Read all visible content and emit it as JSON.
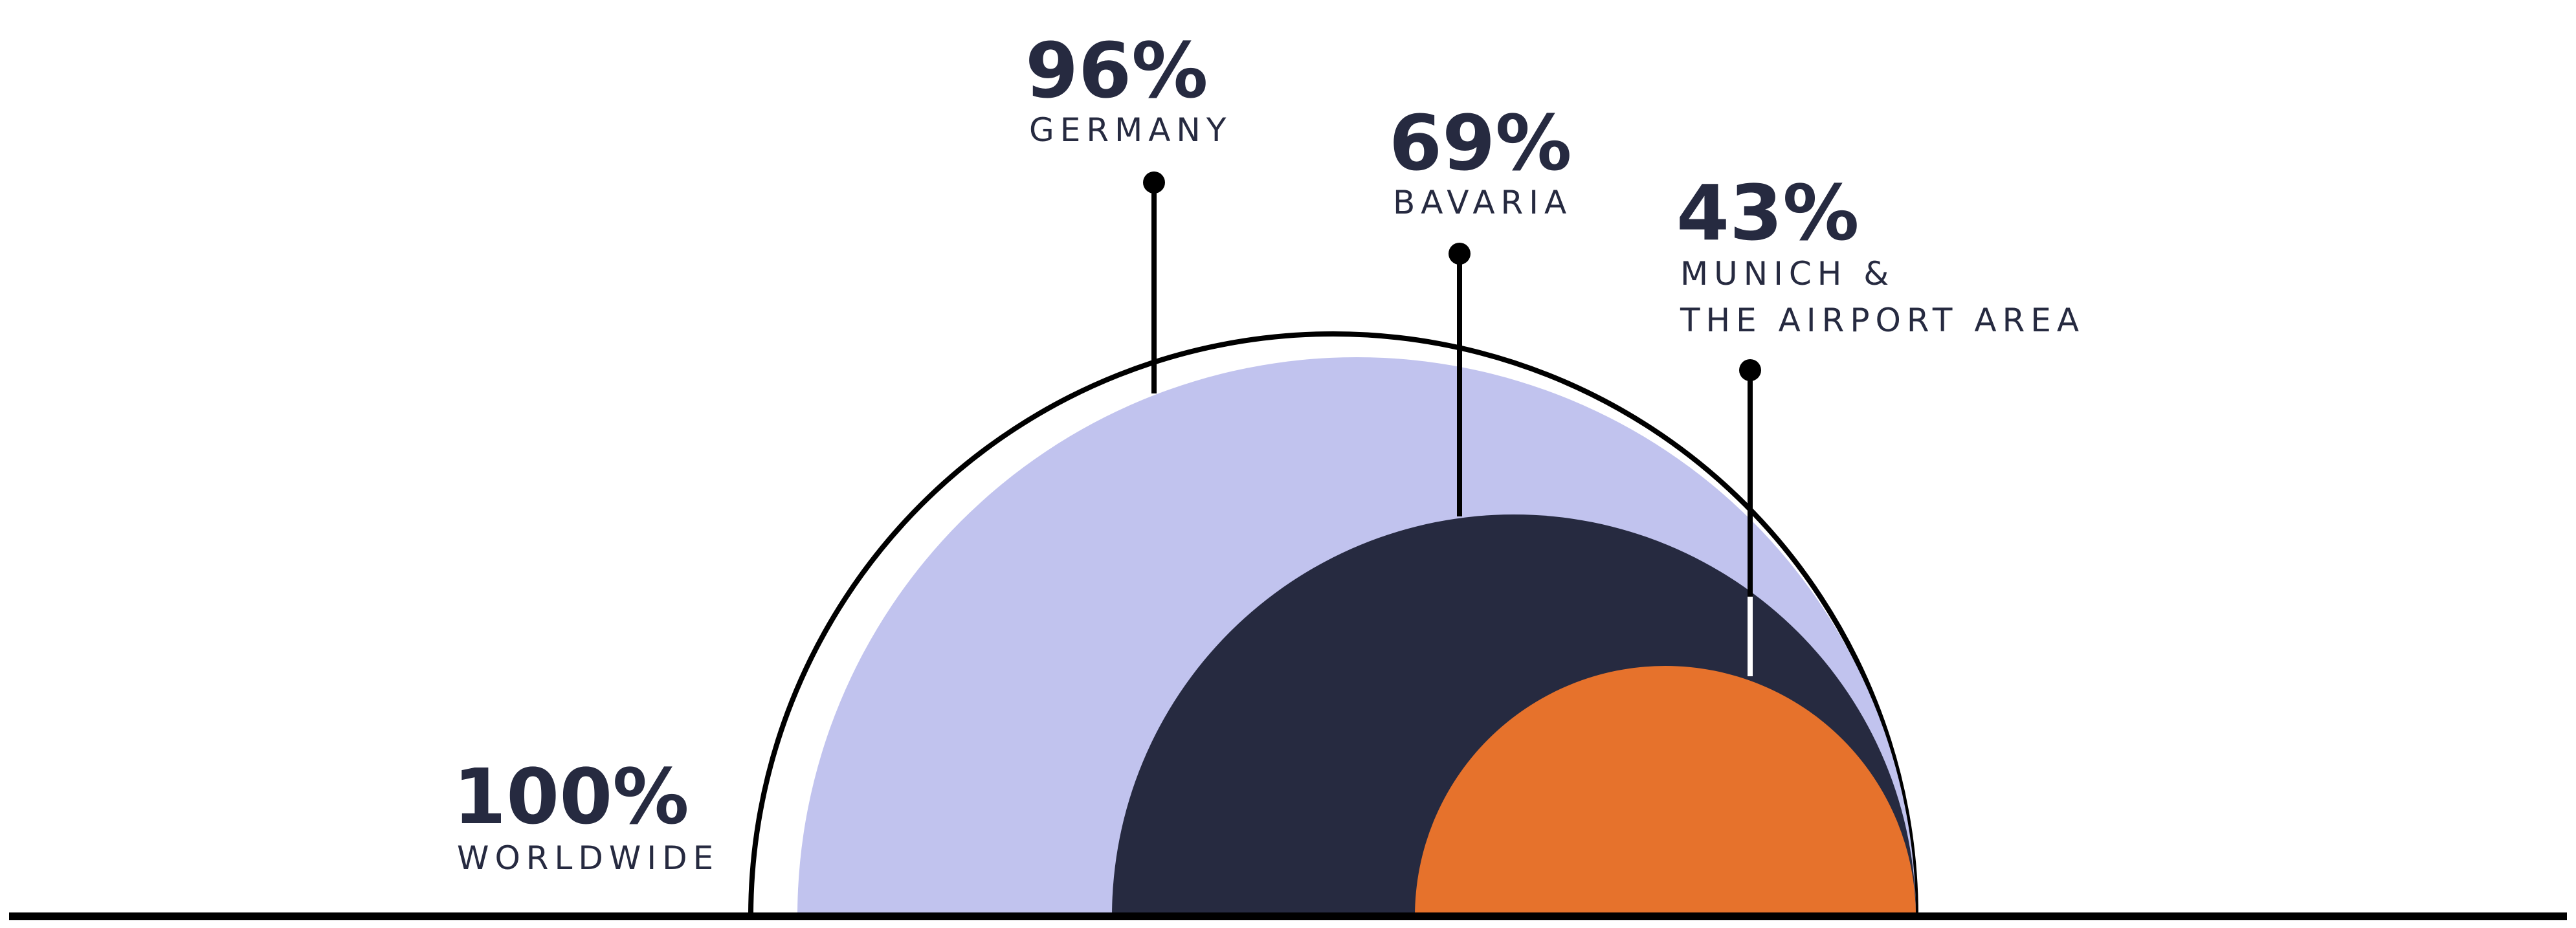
{
  "chart_data": {
    "type": "nested-semicircle",
    "series": [
      {
        "name": "WORLDWIDE",
        "label_lines": [
          "WORLDWIDE"
        ],
        "value": 100,
        "display": "100%",
        "color": "#ffffff"
      },
      {
        "name": "GERMANY",
        "label_lines": [
          "GERMANY"
        ],
        "value": 96,
        "display": "96%",
        "color": "#c1c3ee"
      },
      {
        "name": "BAVARIA",
        "label_lines": [
          "BAVARIA"
        ],
        "value": 69,
        "display": "69%",
        "color": "#262a40"
      },
      {
        "name": "MUNICH & THE AIRPORT AREA",
        "label_lines": [
          "MUNICH &",
          "THE AIRPORT AREA"
        ],
        "value": 43,
        "display": "43%",
        "color": "#e6722c"
      }
    ],
    "outline_color": "#000000",
    "baseline_color": "#000000"
  }
}
